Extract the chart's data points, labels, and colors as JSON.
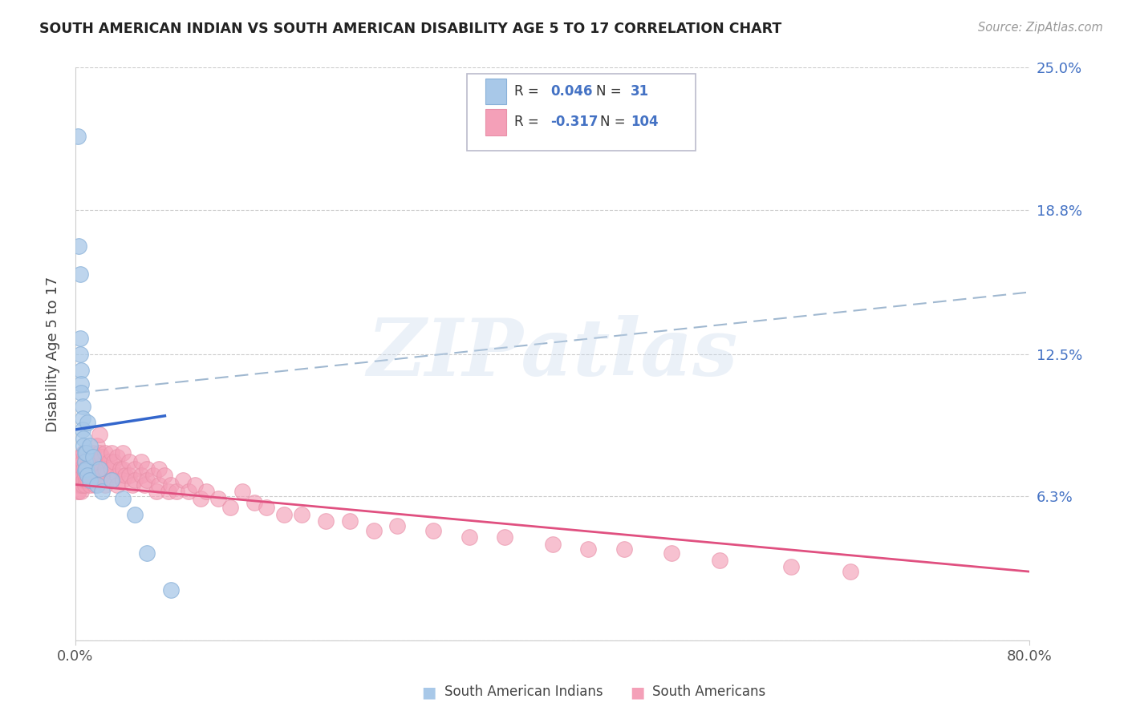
{
  "title": "SOUTH AMERICAN INDIAN VS SOUTH AMERICAN DISABILITY AGE 5 TO 17 CORRELATION CHART",
  "source": "Source: ZipAtlas.com",
  "ylabel": "Disability Age 5 to 17",
  "xlim": [
    0,
    0.8
  ],
  "ylim": [
    0,
    0.25
  ],
  "ytick_positions": [
    0.0,
    0.063,
    0.125,
    0.188,
    0.25
  ],
  "ytick_labels": [
    "",
    "6.3%",
    "12.5%",
    "18.8%",
    "25.0%"
  ],
  "color_blue": "#A8C8E8",
  "color_pink": "#F4A0B8",
  "line_blue": "#3366CC",
  "line_pink": "#E05080",
  "line_dash_color": "#A0B8D0",
  "watermark_text": "ZIPatlas",
  "blue_line": [
    [
      0.0,
      0.092
    ],
    [
      0.075,
      0.098
    ]
  ],
  "pink_line": [
    [
      0.0,
      0.068
    ],
    [
      0.8,
      0.03
    ]
  ],
  "dash_line": [
    [
      0.0,
      0.108
    ],
    [
      0.8,
      0.152
    ]
  ],
  "blue_dots": [
    [
      0.002,
      0.22
    ],
    [
      0.003,
      0.172
    ],
    [
      0.004,
      0.16
    ],
    [
      0.004,
      0.132
    ],
    [
      0.004,
      0.125
    ],
    [
      0.005,
      0.118
    ],
    [
      0.005,
      0.112
    ],
    [
      0.005,
      0.108
    ],
    [
      0.006,
      0.102
    ],
    [
      0.006,
      0.097
    ],
    [
      0.006,
      0.092
    ],
    [
      0.007,
      0.088
    ],
    [
      0.007,
      0.085
    ],
    [
      0.008,
      0.082
    ],
    [
      0.008,
      0.078
    ],
    [
      0.008,
      0.074
    ],
    [
      0.009,
      0.082
    ],
    [
      0.009,
      0.075
    ],
    [
      0.01,
      0.095
    ],
    [
      0.01,
      0.072
    ],
    [
      0.012,
      0.085
    ],
    [
      0.012,
      0.07
    ],
    [
      0.015,
      0.08
    ],
    [
      0.018,
      0.068
    ],
    [
      0.02,
      0.075
    ],
    [
      0.022,
      0.065
    ],
    [
      0.03,
      0.07
    ],
    [
      0.04,
      0.062
    ],
    [
      0.05,
      0.055
    ],
    [
      0.06,
      0.038
    ],
    [
      0.08,
      0.022
    ]
  ],
  "pink_dots": [
    [
      0.001,
      0.072
    ],
    [
      0.001,
      0.068
    ],
    [
      0.002,
      0.075
    ],
    [
      0.002,
      0.07
    ],
    [
      0.002,
      0.068
    ],
    [
      0.002,
      0.065
    ],
    [
      0.003,
      0.078
    ],
    [
      0.003,
      0.072
    ],
    [
      0.003,
      0.068
    ],
    [
      0.003,
      0.065
    ],
    [
      0.004,
      0.08
    ],
    [
      0.004,
      0.075
    ],
    [
      0.004,
      0.072
    ],
    [
      0.004,
      0.068
    ],
    [
      0.005,
      0.075
    ],
    [
      0.005,
      0.07
    ],
    [
      0.005,
      0.068
    ],
    [
      0.005,
      0.065
    ],
    [
      0.006,
      0.078
    ],
    [
      0.006,
      0.072
    ],
    [
      0.006,
      0.068
    ],
    [
      0.007,
      0.082
    ],
    [
      0.007,
      0.075
    ],
    [
      0.007,
      0.07
    ],
    [
      0.008,
      0.078
    ],
    [
      0.008,
      0.072
    ],
    [
      0.008,
      0.068
    ],
    [
      0.009,
      0.075
    ],
    [
      0.009,
      0.07
    ],
    [
      0.01,
      0.082
    ],
    [
      0.01,
      0.075
    ],
    [
      0.01,
      0.07
    ],
    [
      0.012,
      0.08
    ],
    [
      0.012,
      0.075
    ],
    [
      0.012,
      0.068
    ],
    [
      0.014,
      0.078
    ],
    [
      0.015,
      0.082
    ],
    [
      0.015,
      0.075
    ],
    [
      0.015,
      0.07
    ],
    [
      0.016,
      0.068
    ],
    [
      0.018,
      0.085
    ],
    [
      0.018,
      0.078
    ],
    [
      0.02,
      0.09
    ],
    [
      0.02,
      0.082
    ],
    [
      0.02,
      0.075
    ],
    [
      0.022,
      0.08
    ],
    [
      0.022,
      0.072
    ],
    [
      0.025,
      0.082
    ],
    [
      0.025,
      0.075
    ],
    [
      0.025,
      0.068
    ],
    [
      0.028,
      0.078
    ],
    [
      0.03,
      0.082
    ],
    [
      0.03,
      0.075
    ],
    [
      0.03,
      0.07
    ],
    [
      0.032,
      0.078
    ],
    [
      0.035,
      0.08
    ],
    [
      0.035,
      0.072
    ],
    [
      0.035,
      0.068
    ],
    [
      0.038,
      0.075
    ],
    [
      0.04,
      0.082
    ],
    [
      0.04,
      0.075
    ],
    [
      0.04,
      0.07
    ],
    [
      0.042,
      0.072
    ],
    [
      0.045,
      0.078
    ],
    [
      0.045,
      0.072
    ],
    [
      0.048,
      0.068
    ],
    [
      0.05,
      0.075
    ],
    [
      0.05,
      0.07
    ],
    [
      0.055,
      0.078
    ],
    [
      0.055,
      0.072
    ],
    [
      0.058,
      0.068
    ],
    [
      0.06,
      0.075
    ],
    [
      0.06,
      0.07
    ],
    [
      0.065,
      0.072
    ],
    [
      0.068,
      0.065
    ],
    [
      0.07,
      0.075
    ],
    [
      0.07,
      0.068
    ],
    [
      0.075,
      0.072
    ],
    [
      0.078,
      0.065
    ],
    [
      0.08,
      0.068
    ],
    [
      0.085,
      0.065
    ],
    [
      0.09,
      0.07
    ],
    [
      0.095,
      0.065
    ],
    [
      0.1,
      0.068
    ],
    [
      0.105,
      0.062
    ],
    [
      0.11,
      0.065
    ],
    [
      0.12,
      0.062
    ],
    [
      0.13,
      0.058
    ],
    [
      0.14,
      0.065
    ],
    [
      0.15,
      0.06
    ],
    [
      0.16,
      0.058
    ],
    [
      0.175,
      0.055
    ],
    [
      0.19,
      0.055
    ],
    [
      0.21,
      0.052
    ],
    [
      0.23,
      0.052
    ],
    [
      0.25,
      0.048
    ],
    [
      0.27,
      0.05
    ],
    [
      0.3,
      0.048
    ],
    [
      0.33,
      0.045
    ],
    [
      0.36,
      0.045
    ],
    [
      0.4,
      0.042
    ],
    [
      0.43,
      0.04
    ],
    [
      0.46,
      0.04
    ],
    [
      0.5,
      0.038
    ],
    [
      0.54,
      0.035
    ],
    [
      0.6,
      0.032
    ],
    [
      0.65,
      0.03
    ]
  ]
}
